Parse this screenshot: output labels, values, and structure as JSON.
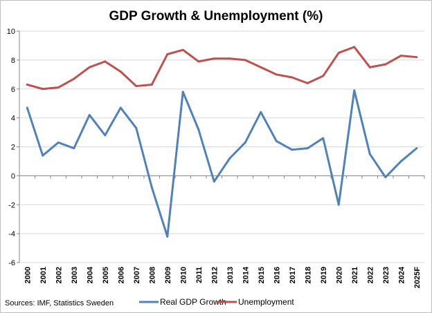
{
  "chart_data": {
    "type": "line",
    "title": "GDP Growth & Unemployment (%)",
    "categories": [
      "2000",
      "2001",
      "2002",
      "2003",
      "2004",
      "2005",
      "2006",
      "2007",
      "2008",
      "2009",
      "2010",
      "2011",
      "2012",
      "2013",
      "2014",
      "2015",
      "2016",
      "2017",
      "2018",
      "2019",
      "2020",
      "2021",
      "2022",
      "2023",
      "2024",
      "2025F"
    ],
    "series": [
      {
        "name": "Real GDP Growth",
        "color": "#4f81bd",
        "values": [
          4.7,
          1.4,
          2.3,
          1.9,
          4.2,
          2.8,
          4.7,
          3.3,
          -0.8,
          -4.2,
          5.8,
          3.2,
          -0.4,
          1.2,
          2.3,
          4.4,
          2.4,
          1.8,
          1.9,
          2.6,
          -2.0,
          5.9,
          1.5,
          -0.1,
          1.0,
          1.9
        ]
      },
      {
        "name": "Unemployment",
        "color": "#c0504d",
        "values": [
          6.3,
          6.0,
          6.1,
          6.7,
          7.5,
          7.9,
          7.2,
          6.2,
          6.3,
          8.4,
          8.7,
          7.9,
          8.1,
          8.1,
          8.0,
          7.5,
          7.0,
          6.8,
          6.4,
          6.9,
          8.5,
          8.9,
          7.5,
          7.7,
          8.3,
          8.2
        ]
      }
    ],
    "ylim": [
      -6,
      10
    ],
    "yticks": [
      -6,
      -4,
      -2,
      0,
      2,
      4,
      6,
      8,
      10
    ],
    "grid": true,
    "legend": "bottom"
  },
  "source_note": "Sources: IMF, Statistics Sweden"
}
